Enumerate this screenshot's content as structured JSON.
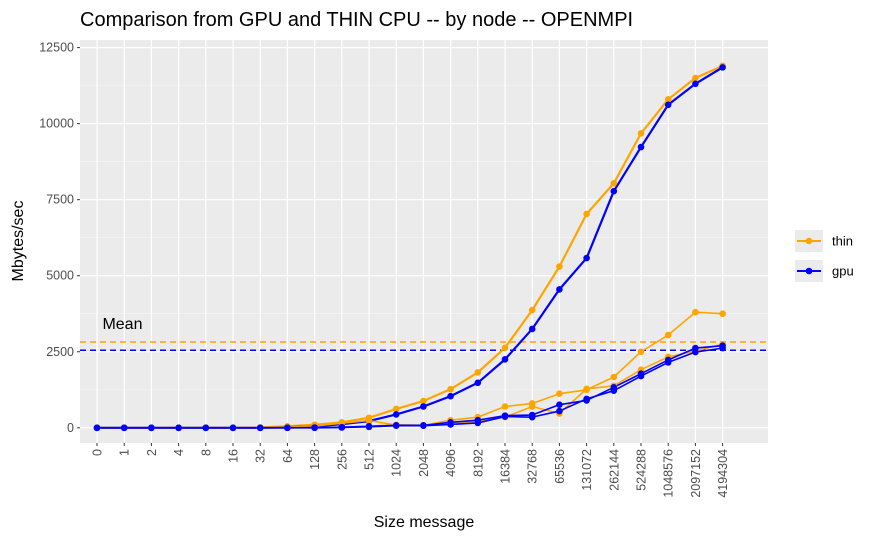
{
  "chart_data": {
    "type": "line",
    "title": "Comparison from GPU and THIN CPU -- by node -- OPENMPI",
    "xlabel": "Size message",
    "ylabel": "Mbytes/sec",
    "categories": [
      "0",
      "1",
      "2",
      "4",
      "8",
      "16",
      "32",
      "64",
      "128",
      "256",
      "512",
      "1024",
      "2048",
      "4096",
      "8192",
      "16384",
      "32768",
      "65536",
      "131072",
      "262144",
      "524288",
      "1048576",
      "2097152",
      "4194304"
    ],
    "ylim": [
      -500,
      12750
    ],
    "yticks": [
      0,
      2500,
      5000,
      7500,
      10000,
      12500
    ],
    "ytick_labels": [
      "0",
      "2500",
      "5000",
      "7500",
      "10000",
      "12500"
    ],
    "grid": true,
    "legend_position": "right",
    "legend": [
      {
        "label": "thin",
        "color": "#FFA500"
      },
      {
        "label": "gpu",
        "color": "#0000FF"
      }
    ],
    "series": [
      {
        "group": "thin",
        "color": "#FFA500",
        "width": 2.2,
        "values": [
          0,
          0,
          0,
          0,
          0,
          0,
          10,
          50,
          100,
          180,
          330,
          620,
          880,
          1270,
          1820,
          2630,
          3870,
          5300,
          7030,
          8040,
          9680,
          10800,
          11500,
          11900
        ]
      },
      {
        "group": "gpu",
        "color": "#0000FF",
        "width": 2.2,
        "values": [
          0,
          0,
          0,
          0,
          0,
          0,
          0,
          20,
          50,
          120,
          220,
          440,
          700,
          1040,
          1480,
          2250,
          3250,
          4550,
          5580,
          7780,
          9230,
          10620,
          11310,
          11850
        ]
      },
      {
        "group": "thin",
        "color": "#FFA500",
        "width": 1.6,
        "values": [
          0,
          0,
          0,
          0,
          0,
          0,
          5,
          20,
          60,
          150,
          240,
          90,
          80,
          250,
          350,
          700,
          800,
          1120,
          1250,
          1670,
          2500,
          3050,
          3800,
          3750
        ]
      },
      {
        "group": "thin",
        "color": "#FFA500",
        "width": 1.6,
        "values": [
          0,
          0,
          0,
          0,
          0,
          0,
          0,
          0,
          10,
          20,
          50,
          100,
          80,
          150,
          200,
          350,
          700,
          470,
          1280,
          1380,
          1910,
          2330,
          2520,
          2750
        ]
      },
      {
        "group": "gpu",
        "color": "#0000FF",
        "width": 1.6,
        "values": [
          0,
          0,
          0,
          0,
          0,
          0,
          0,
          0,
          10,
          20,
          50,
          80,
          80,
          180,
          250,
          400,
          420,
          760,
          900,
          1330,
          1780,
          2230,
          2620,
          2700
        ]
      },
      {
        "group": "gpu",
        "color": "#0000FF",
        "width": 1.6,
        "values": [
          0,
          0,
          0,
          0,
          0,
          0,
          0,
          0,
          0,
          10,
          30,
          70,
          70,
          110,
          160,
          370,
          350,
          550,
          950,
          1220,
          1700,
          2150,
          2490,
          2620
        ]
      }
    ],
    "hlines": [
      {
        "group": "thin",
        "y": 2820,
        "color": "#FFA500",
        "style": "dashed"
      },
      {
        "group": "gpu",
        "y": 2550,
        "color": "#0000FF",
        "style": "dashed"
      }
    ],
    "annotation": {
      "text": "Mean",
      "x_index": 0.2,
      "y": 3250
    }
  }
}
